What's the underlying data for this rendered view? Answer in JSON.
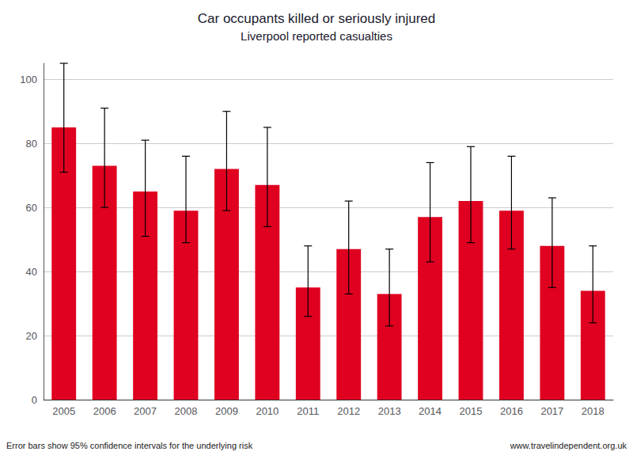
{
  "chart_data": {
    "type": "bar",
    "title": "Car occupants killed or seriously injured",
    "subtitle": "Liverpool reported casualties",
    "categories": [
      "2005",
      "2006",
      "2007",
      "2008",
      "2009",
      "2010",
      "2011",
      "2012",
      "2013",
      "2014",
      "2015",
      "2016",
      "2017",
      "2018"
    ],
    "values": [
      85,
      73,
      65,
      59,
      72,
      67,
      35,
      47,
      33,
      57,
      62,
      59,
      48,
      34
    ],
    "err_low": [
      14,
      13,
      14,
      10,
      13,
      13,
      9,
      14,
      10,
      14,
      13,
      12,
      13,
      10
    ],
    "err_high": [
      20,
      18,
      16,
      17,
      18,
      18,
      13,
      15,
      14,
      17,
      17,
      17,
      15,
      14
    ],
    "color": "#e00020",
    "ylim": [
      0,
      105
    ],
    "yticks": [
      0,
      20,
      40,
      60,
      80,
      100
    ],
    "grid": true,
    "annotations": [
      "Error bars show 95% confidence intervals for the underlying risk",
      "www.travelindependent.org.uk"
    ]
  }
}
